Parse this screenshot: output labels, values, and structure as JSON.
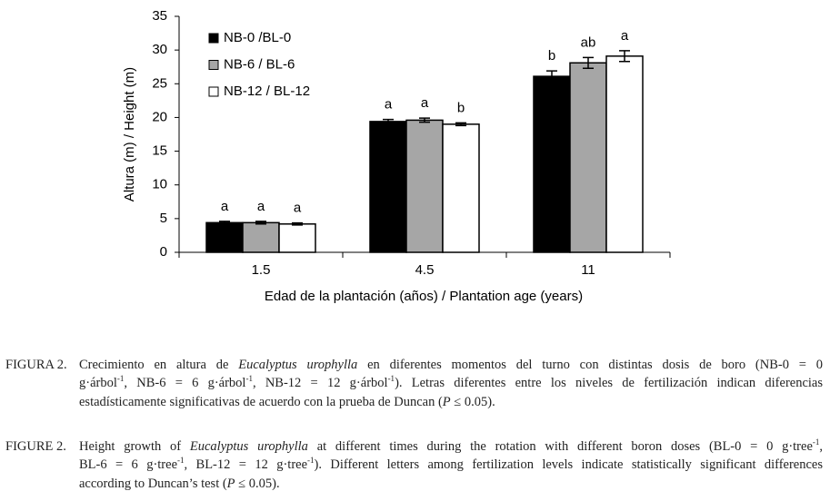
{
  "chart_data": {
    "type": "bar",
    "y_label": "Altura (m) / Height (m)",
    "x_label": "Edad de la plantación (años) / Plantation age (years)",
    "categories": [
      "1.5",
      "4.5",
      "11"
    ],
    "series": [
      {
        "name": "NB-0 /BL-0",
        "color": "#000000",
        "values": [
          4.4,
          19.4,
          26.1
        ],
        "errors": [
          0.2,
          0.3,
          0.8
        ],
        "letters": [
          "a",
          "a",
          "b"
        ]
      },
      {
        "name": "NB-6 / BL-6",
        "color": "#a6a6a6",
        "values": [
          4.4,
          19.6,
          28.1
        ],
        "errors": [
          0.2,
          0.3,
          0.8
        ],
        "letters": [
          "a",
          "a",
          "ab"
        ]
      },
      {
        "name": "NB-12 / BL-12",
        "color": "#ffffff",
        "values": [
          4.2,
          19.0,
          29.1
        ],
        "errors": [
          0.15,
          0.2,
          0.8
        ],
        "letters": [
          "a",
          "b",
          "a"
        ]
      }
    ],
    "ylim": [
      0,
      35
    ],
    "yticks": [
      0,
      5,
      10,
      15,
      20,
      25,
      30,
      35
    ],
    "legend": "upper-left"
  },
  "caption_es": {
    "label": "FIGURA 2.",
    "lines": [
      [
        "Crecimiento en altura de ",
        "Eucalyptus urophylla",
        " en diferentes momentos del turno con distintas dosis de boro (NB-0 = 0"
      ],
      [
        "g·árbol",
        "-1",
        ", NB-6 = 6 g·árbol",
        "-1",
        ", NB-12 = 12 g·árbol",
        "-1",
        "). Letras diferentes entre los niveles de fertilización indican diferencias"
      ],
      [
        "estadísticamente significativas de acuerdo con la prueba de Duncan (",
        "P",
        " ≤ 0.05)."
      ]
    ]
  },
  "caption_en": {
    "label": "FIGURE 2.",
    "lines": [
      [
        "Height growth of ",
        "Eucalyptus urophylla",
        " at different times during the rotation with different boron doses (BL-0 = 0 g·tree",
        "-1",
        ","
      ],
      [
        "BL-6 = 6 g·tree",
        "-1",
        ", BL-12 = 12 g·tree",
        "-1",
        "). Different letters among fertilization levels indicate statistically significant differences"
      ],
      [
        "according to Duncan’s test (",
        "P",
        " ≤ 0.05)."
      ]
    ]
  }
}
